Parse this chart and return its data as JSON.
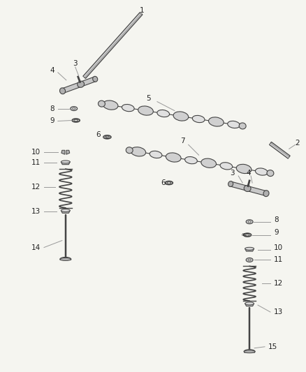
{
  "bg_color": "#f5f5f0",
  "line_color": "#444444",
  "dark_color": "#222222",
  "light_gray": "#999999",
  "mid_gray": "#aaaaaa",
  "part_fill": "#c8c8c8",
  "part_fill2": "#b0b0b0",
  "part_fill3": "#d8d8d8",
  "white": "#ffffff",
  "cam_lobe_fill": "#d0d0d0",
  "cam_journal_fill": "#e0e0e0"
}
